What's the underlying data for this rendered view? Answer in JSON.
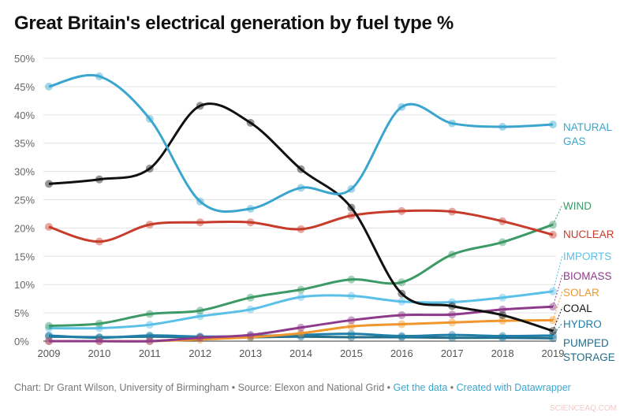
{
  "title": "Great Britain's electrical generation by fuel type %",
  "footer": {
    "credit": "Chart: Dr Grant Wilson, University of Birmingham",
    "source": "Source: Elexon and National Grid",
    "sep": " • ",
    "get_data": "Get the data",
    "created": "Created with Datawrapper"
  },
  "watermark": "SCIENCEAQ.COM",
  "chart_data": {
    "type": "line",
    "title": "Great Britain's electrical generation by fuel type %",
    "xlabel": "",
    "ylabel": "",
    "x": [
      2009,
      2010,
      2011,
      2012,
      2013,
      2014,
      2015,
      2016,
      2017,
      2018,
      2019
    ],
    "ylim": [
      0,
      50
    ],
    "yticks": [
      0,
      5,
      10,
      15,
      20,
      25,
      30,
      35,
      40,
      45,
      50
    ],
    "ytick_labels": [
      "0%",
      "5%",
      "10%",
      "15%",
      "20%",
      "25%",
      "30%",
      "35%",
      "40%",
      "45%",
      "50%"
    ],
    "grid": true,
    "legend": "direct labels at right",
    "series": [
      {
        "name": "NATURAL GAS",
        "color": "#3aa6cf",
        "values": [
          45,
          46.8,
          39.3,
          24.7,
          23.4,
          27.1,
          26.9,
          41.4,
          38.5,
          37.9,
          38.3
        ]
      },
      {
        "name": "COAL",
        "color": "#111111",
        "values": [
          27.8,
          28.6,
          30.5,
          41.6,
          38.6,
          30.4,
          23.6,
          8.4,
          6.2,
          4.6,
          1.8
        ]
      },
      {
        "name": "NUCLEAR",
        "color": "#c63b2a",
        "values": [
          20.2,
          17.6,
          20.6,
          21,
          21,
          19.8,
          22.2,
          23,
          22.9,
          21.2,
          18.8
        ]
      },
      {
        "name": "WIND",
        "color": "#3b9a66",
        "values": [
          2.7,
          3.1,
          4.8,
          5.4,
          7.7,
          9.1,
          10.9,
          10.4,
          15.3,
          17.5,
          20.6
        ]
      },
      {
        "name": "IMPORTS",
        "color": "#5bc0e8",
        "values": [
          2.3,
          2.3,
          2.9,
          4.4,
          5.6,
          7.8,
          8,
          7,
          6.9,
          7.7,
          8.8
        ]
      },
      {
        "name": "BIOMASS",
        "color": "#8e3a8a",
        "values": [
          0,
          0,
          0,
          0.6,
          1.1,
          2.4,
          3.7,
          4.6,
          4.7,
          5.6,
          6.1
        ]
      },
      {
        "name": "SOLAR",
        "color": "#f0962d",
        "values": [
          0,
          0,
          0,
          0.3,
          0.7,
          1.4,
          2.6,
          3.0,
          3.3,
          3.6,
          3.7
        ]
      },
      {
        "name": "HYDRO",
        "color": "#1f7fa8",
        "values": [
          1.0,
          0.6,
          1.0,
          0.8,
          0.9,
          1.1,
          1.3,
          0.9,
          1.1,
          0.9,
          1.0
        ]
      },
      {
        "name": "PUMPED STORAGE",
        "color": "#246e8a",
        "values": [
          0.8,
          0.7,
          0.8,
          0.7,
          0.7,
          0.8,
          0.7,
          0.7,
          0.6,
          0.6,
          0.5
        ]
      }
    ]
  }
}
